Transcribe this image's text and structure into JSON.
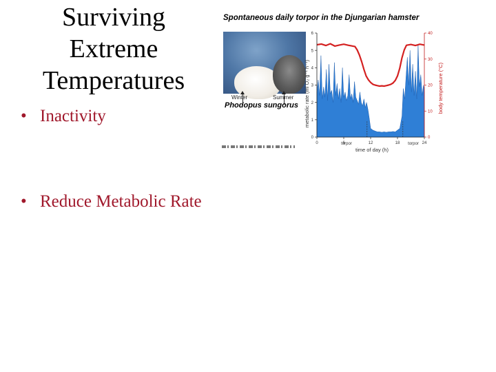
{
  "slide": {
    "title_lines": [
      "Surviving",
      "Extreme",
      "Temperatures"
    ],
    "bullets": [
      "Inactivity",
      "Reduce Metabolic Rate"
    ],
    "bullet_glyph": "•",
    "text_color": "#a0182b"
  },
  "figure": {
    "title": "Spontaneous daily torpor in the Djungarian hamster",
    "photo_labels": {
      "left": "Winter",
      "right": "Summer"
    },
    "species": "Phodopus sungorus",
    "annotations": [
      "torpor",
      "torpor"
    ]
  },
  "chart_data": {
    "type": "area",
    "xlabel": "time of day (h)",
    "ylabel_left": "metabolic rate (ml O₂ g⁻¹ h⁻¹)",
    "ylabel_right": "body temperature (°C)",
    "x_ticks": [
      0,
      6,
      12,
      18,
      24
    ],
    "xlim": [
      0,
      24
    ],
    "left_ticks": [
      0,
      1,
      2,
      3,
      4,
      5,
      6
    ],
    "ylim_left": [
      0,
      6
    ],
    "right_ticks": [
      0,
      10,
      20,
      30,
      40
    ],
    "ylim_right": [
      0,
      40
    ],
    "series": [
      {
        "color": "#2f7fd6",
        "axis": "left",
        "x": [
          0,
          0.3,
          0.6,
          0.9,
          1.2,
          1.5,
          1.8,
          2.1,
          2.4,
          2.7,
          3.0,
          3.3,
          3.6,
          3.9,
          4.2,
          4.5,
          4.8,
          5.1,
          5.4,
          5.7,
          6.0,
          6.3,
          6.6,
          6.9,
          7.2,
          7.5,
          7.8,
          8.1,
          8.4,
          8.7,
          9.0,
          9.3,
          9.6,
          9.9,
          10.2,
          10.5,
          10.8,
          11.1,
          11.4,
          11.7,
          12.0,
          12.5,
          13,
          13.5,
          14,
          14.5,
          15,
          15.5,
          16,
          16.5,
          17,
          17.5,
          18,
          18.5,
          19,
          19.3,
          19.6,
          19.9,
          20.2,
          20.5,
          20.8,
          21.1,
          21.4,
          21.7,
          22.0,
          22.3,
          22.6,
          22.9,
          23.2,
          23.5,
          23.8,
          24
        ],
        "values": [
          2.6,
          3.3,
          2.4,
          4.7,
          2.2,
          2.9,
          2.3,
          3.9,
          2.1,
          4.2,
          2.5,
          2.7,
          2.0,
          4.3,
          2.4,
          3.1,
          2.2,
          2.8,
          2.0,
          4.0,
          2.3,
          2.6,
          2.1,
          2.4,
          3.6,
          2.2,
          2.5,
          2.0,
          3.2,
          2.3,
          2.1,
          1.9,
          2.6,
          2.0,
          1.8,
          2.2,
          1.7,
          2.0,
          1.6,
          1.1,
          0.5,
          0.4,
          0.35,
          0.3,
          0.3,
          0.28,
          0.3,
          0.28,
          0.3,
          0.3,
          0.32,
          0.3,
          0.4,
          0.5,
          1.2,
          2.8,
          2.2,
          3.4,
          4.6,
          3.0,
          5.0,
          2.6,
          4.2,
          2.4,
          3.8,
          2.2,
          5.3,
          2.9,
          3.6,
          2.4,
          3.0,
          2.6
        ]
      },
      {
        "color": "#d42020",
        "axis": "right",
        "x": [
          0,
          1,
          2,
          3,
          4,
          5,
          6,
          7,
          8,
          8.5,
          9,
          9.5,
          10,
          10.5,
          11,
          11.5,
          12,
          12.5,
          13,
          13.5,
          14,
          14.5,
          15,
          15.5,
          16,
          16.5,
          17,
          17.5,
          18,
          18.5,
          19,
          19.5,
          20,
          21,
          22,
          23,
          24
        ],
        "values": [
          35.5,
          35.8,
          35.2,
          35.9,
          35.0,
          35.4,
          35.7,
          35.3,
          35.0,
          34.8,
          33.5,
          31.5,
          29.0,
          26.0,
          23.5,
          22.0,
          21.0,
          20.3,
          20.0,
          19.8,
          19.6,
          19.7,
          19.6,
          19.8,
          20.0,
          20.3,
          20.8,
          21.8,
          23.5,
          26.5,
          30.5,
          33.5,
          35.3,
          35.6,
          35.2,
          35.7,
          35.4
        ]
      }
    ]
  }
}
